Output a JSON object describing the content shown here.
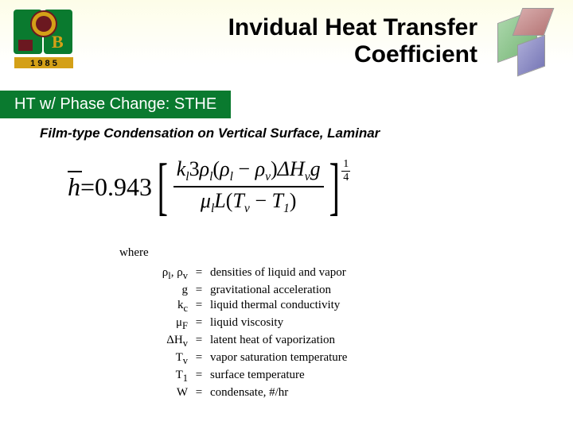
{
  "header": {
    "title_line1": "Invidual Heat Transfer",
    "title_line2": "Coefficient",
    "title_color": "#000000",
    "title_fontsize": 30,
    "title_fontweight": "bold"
  },
  "section": {
    "label": "HT w/ Phase Change: STHE",
    "bg_color": "#0a7a2f",
    "text_color": "#ffffff",
    "fontsize": 20
  },
  "subtitle": {
    "text": "Film-type Condensation on Vertical Surface, Laminar",
    "fontsize": 17,
    "fontweight": "bold",
    "fontstyle": "italic",
    "color": "#000000"
  },
  "equation": {
    "lhs_symbol": "h",
    "equals": " = ",
    "coefficient": "0.943",
    "numerator_parts": {
      "k": "k",
      "k_sub": "l",
      "three": "3",
      "rho_l": "ρ",
      "rho_l_sub": "l",
      "paren_open": "(",
      "rho_l2": "ρ",
      "rho_l2_sub": "l",
      "minus": " − ",
      "rho_v": "ρ",
      "rho_v_sub": "v",
      "paren_close": ")",
      "delta_h": "ΔH",
      "delta_h_sub": "v",
      "g": "g"
    },
    "denominator_parts": {
      "mu": "μ",
      "mu_sub": "l",
      "L": "L",
      "paren_open": "(",
      "Tv": "T",
      "Tv_sub": "v",
      "minus": " − ",
      "T1": "T",
      "T1_sub": "1",
      "paren_close": ")"
    },
    "exponent_num": "1",
    "exponent_den": "4"
  },
  "where": {
    "label": "where",
    "definitions": [
      {
        "sym": "ρ<sub>l</sub>, ρ<sub>v</sub>",
        "desc": "densities of liquid and vapor"
      },
      {
        "sym": "g",
        "desc": "gravitational acceleration"
      },
      {
        "sym": "k<sub>c</sub>",
        "desc": "liquid thermal conductivity"
      },
      {
        "sym": "μ<sub>F</sub>",
        "desc": "liquid viscosity"
      },
      {
        "sym": "ΔH<sub>v</sub>",
        "desc": "latent heat of vaporization"
      },
      {
        "sym": "T<sub>v</sub>",
        "desc": "vapor saturation temperature"
      },
      {
        "sym": "T<sub>1</sub>",
        "desc": "surface temperature"
      },
      {
        "sym": "W",
        "desc": "condensate, #/hr"
      }
    ]
  },
  "logo": {
    "year": "1985",
    "colors": {
      "green": "#0a7a2f",
      "gold": "#d4a017",
      "maroon": "#6b1820"
    }
  }
}
